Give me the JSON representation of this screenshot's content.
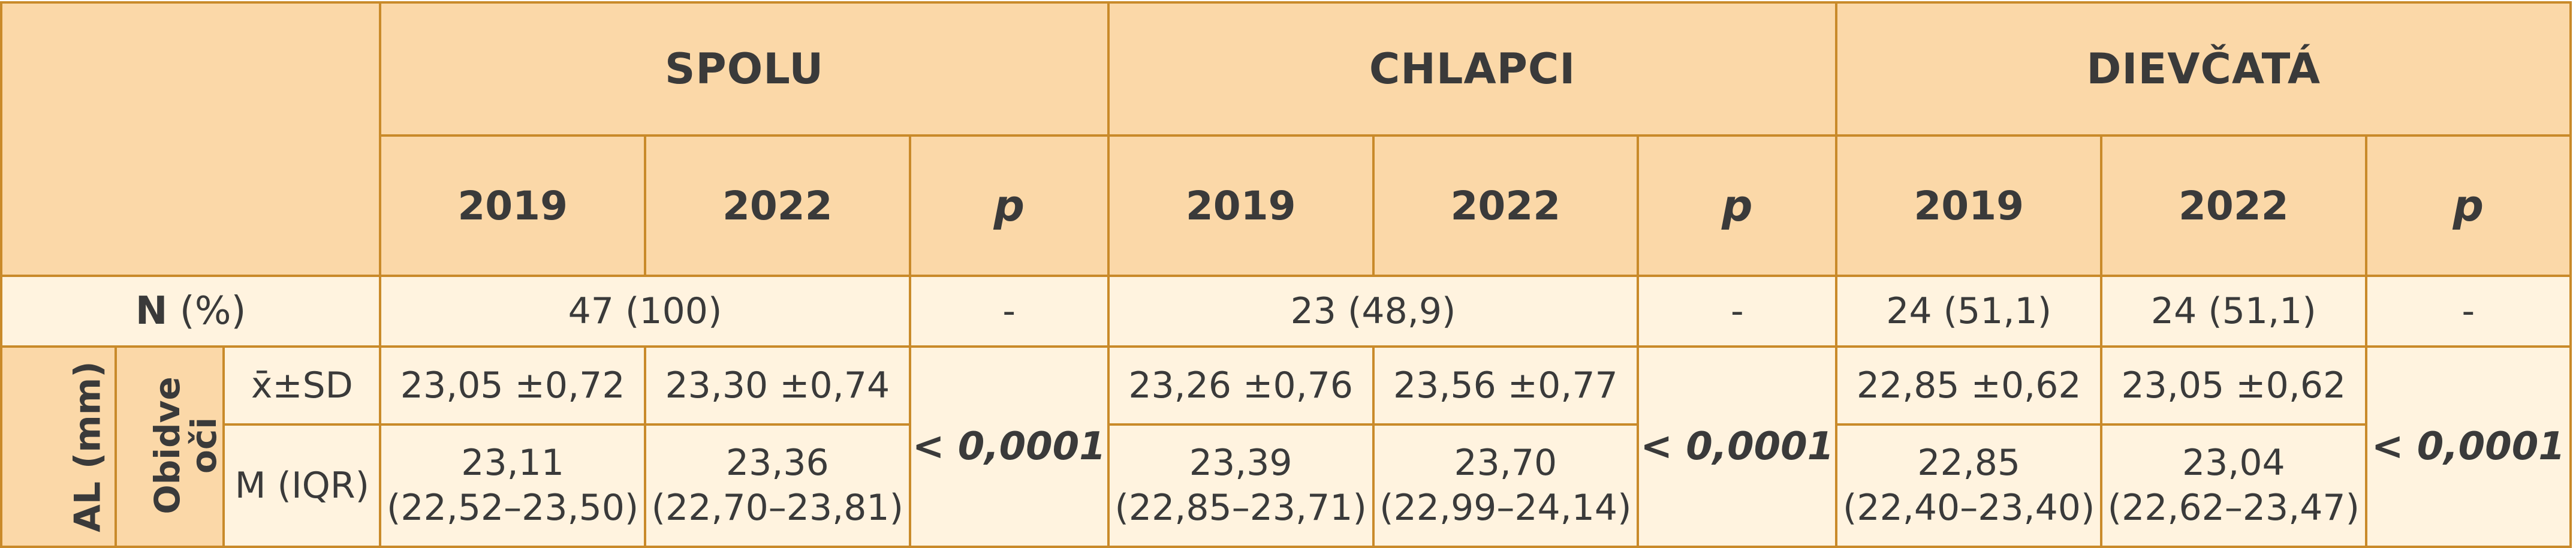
{
  "header": {
    "groups": [
      "SPOLU",
      "CHLAPCI",
      "DIEVČATÁ"
    ],
    "years": [
      "2019",
      "2022"
    ],
    "p_label": "p"
  },
  "n_row": {
    "label_main": "N",
    "label_unit": "(%)",
    "spolu": "47 (100)",
    "spolu_p": "-",
    "chlapci": "23 (48,9)",
    "chlapci_p": "-",
    "dievcata_2019": "24 (51,1)",
    "dievcata_2022": "24 (51,1)",
    "dievcata_p": "-"
  },
  "al_block": {
    "label": "AL (mm)",
    "sub_label_line1": "Obidve",
    "sub_label_line2": "oči",
    "mean_row": {
      "stat": "x̄±SD",
      "spolu_2019": "23,05 ±0,72",
      "spolu_2022": "23,30 ±0,74",
      "chlapci_2019": "23,26 ±0,76",
      "chlapci_2022": "23,56 ±0,77",
      "dievcata_2019": "22,85 ±0,62",
      "dievcata_2022": "23,05 ±0,62"
    },
    "median_row": {
      "stat": "M (IQR)",
      "spolu_2019": [
        "23,11",
        "(22,52–23,50)"
      ],
      "spolu_2022": [
        "23,36",
        "(22,70–23,81)"
      ],
      "chlapci_2019": [
        "23,39",
        "(22,85–23,71)"
      ],
      "chlapci_2022": [
        "23,70",
        "(22,99–24,14)"
      ],
      "dievcata_2019": [
        "22,85",
        "(22,40–23,40)"
      ],
      "dievcata_2022": [
        "23,04",
        "(22,62–23,47)"
      ]
    },
    "p_spolu": "< 0,0001",
    "p_chlapci": "< 0,0001",
    "p_dievcata": "< 0,0001"
  }
}
